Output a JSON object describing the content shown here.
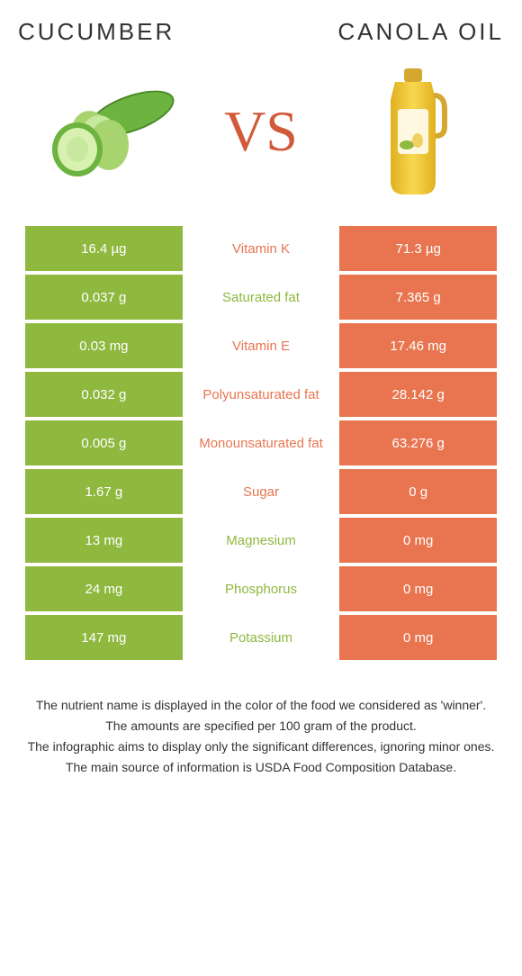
{
  "header": {
    "left_title": "CUCUMBER",
    "right_title": "CANOLA OIL",
    "vs_label": "VS"
  },
  "colors": {
    "green": "#8fb83f",
    "orange": "#e8754f",
    "vs": "#d05a3a"
  },
  "rows": [
    {
      "left": "16.4 µg",
      "label": "Vitamin K",
      "right": "71.3 µg",
      "winner": "orange"
    },
    {
      "left": "0.037 g",
      "label": "Saturated fat",
      "right": "7.365 g",
      "winner": "green"
    },
    {
      "left": "0.03 mg",
      "label": "Vitamin E",
      "right": "17.46 mg",
      "winner": "orange"
    },
    {
      "left": "0.032 g",
      "label": "Polyunsaturated fat",
      "right": "28.142 g",
      "winner": "orange"
    },
    {
      "left": "0.005 g",
      "label": "Monounsaturated fat",
      "right": "63.276 g",
      "winner": "orange"
    },
    {
      "left": "1.67 g",
      "label": "Sugar",
      "right": "0 g",
      "winner": "orange"
    },
    {
      "left": "13 mg",
      "label": "Magnesium",
      "right": "0 mg",
      "winner": "green"
    },
    {
      "left": "24 mg",
      "label": "Phosphorus",
      "right": "0 mg",
      "winner": "green"
    },
    {
      "left": "147 mg",
      "label": "Potassium",
      "right": "0 mg",
      "winner": "green"
    }
  ],
  "footer": {
    "line1": "The nutrient name is displayed in the color of the food we considered as 'winner'.",
    "line2": "The amounts are specified per 100 gram of the product.",
    "line3": "The infographic aims to display only the significant differences, ignoring minor ones.",
    "line4": "The main source of information is USDA Food Composition Database."
  }
}
